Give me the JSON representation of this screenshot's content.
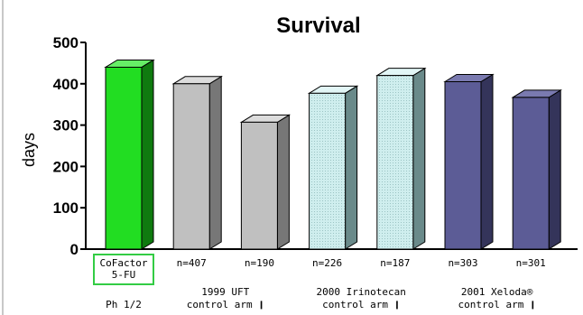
{
  "chart_data": {
    "type": "bar",
    "title": "Survival",
    "ylabel": "days",
    "xlabel": "",
    "ylim": [
      0,
      500
    ],
    "yticks": [
      0,
      100,
      200,
      300,
      400,
      500
    ],
    "grid": false,
    "style": "3d",
    "bars": [
      {
        "label_lines": [
          "CoFactor",
          "5-FU"
        ],
        "value": 440,
        "color": "#22dd22",
        "side": "#0f7a0f",
        "top": "#66ee66",
        "highlighted": true,
        "pattern": false
      },
      {
        "label_lines": [
          "n=407"
        ],
        "value": 400,
        "color": "#c0c0c0",
        "side": "#777777",
        "top": "#dcdcdc",
        "highlighted": false,
        "pattern": false
      },
      {
        "label_lines": [
          "n=190"
        ],
        "value": 307,
        "color": "#c0c0c0",
        "side": "#777777",
        "top": "#dcdcdc",
        "highlighted": false,
        "pattern": false
      },
      {
        "label_lines": [
          "n=226"
        ],
        "value": 377,
        "color": "#cfeeee",
        "side": "#6a8a8a",
        "top": "#e2f6f6",
        "highlighted": false,
        "pattern": true
      },
      {
        "label_lines": [
          "n=187"
        ],
        "value": 420,
        "color": "#cfeeee",
        "side": "#6a8a8a",
        "top": "#e2f6f6",
        "highlighted": false,
        "pattern": true
      },
      {
        "label_lines": [
          "n=303"
        ],
        "value": 405,
        "color": "#5c5c96",
        "side": "#34345a",
        "top": "#7a7ab0",
        "highlighted": false,
        "pattern": false
      },
      {
        "label_lines": [
          "n=301"
        ],
        "value": 367,
        "color": "#5c5c96",
        "side": "#34345a",
        "top": "#7a7ab0",
        "highlighted": false,
        "pattern": false
      }
    ],
    "groups": [
      {
        "label_lines": [
          "",
          "Ph 1/2"
        ],
        "bars": [
          0
        ]
      },
      {
        "label_lines": [
          "1999 UFT",
          "control arm ❙"
        ],
        "bars": [
          1,
          2
        ]
      },
      {
        "label_lines": [
          "2000 Irinotecan",
          "control arm ❙"
        ],
        "bars": [
          3,
          4
        ]
      },
      {
        "label_lines": [
          "2001 Xeloda®",
          "control arm ❙"
        ],
        "bars": [
          5,
          6
        ]
      }
    ]
  },
  "colors": {
    "highlight_box": "#33cc44",
    "axis": "#000000"
  }
}
